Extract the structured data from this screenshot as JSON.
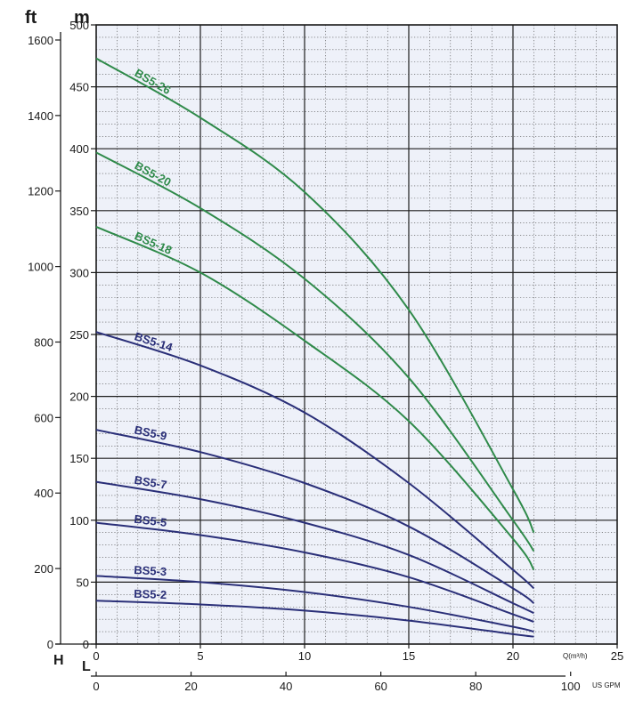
{
  "chart_data": {
    "type": "line",
    "title": "",
    "unit_labels": {
      "ft": "ft",
      "m": "m"
    },
    "axis_letters": {
      "head": "H",
      "flow": "L"
    },
    "x_axis": {
      "label": "Q(m³/h)",
      "ticks": [
        "0",
        "5",
        "10",
        "15",
        "20",
        "25"
      ],
      "range": [
        0,
        25
      ]
    },
    "x_axis_gpm": {
      "label": "US GPM",
      "ticks": [
        "0",
        "20",
        "40",
        "60",
        "80",
        "100"
      ],
      "range": [
        0,
        110
      ]
    },
    "y_axis_m": {
      "ticks": [
        "0",
        "50",
        "100",
        "150",
        "200",
        "250",
        "300",
        "350",
        "400",
        "450",
        "500"
      ],
      "range": [
        0,
        500
      ]
    },
    "y_axis_ft": {
      "ticks": [
        "0",
        "200",
        "400",
        "600",
        "800",
        "1000",
        "1200",
        "1400",
        "1600"
      ],
      "range": [
        0,
        1640
      ]
    },
    "series": [
      {
        "name": "BS5-26",
        "color": "#2f8a4a",
        "x": [
          0,
          5,
          10,
          15,
          20,
          21
        ],
        "y": [
          473,
          425,
          365,
          270,
          125,
          90
        ]
      },
      {
        "name": "BS5-20",
        "color": "#2f8a4a",
        "x": [
          0,
          5,
          10,
          15,
          20,
          21
        ],
        "y": [
          397,
          352,
          295,
          215,
          100,
          75
        ]
      },
      {
        "name": "BS5-18",
        "color": "#2f8a4a",
        "x": [
          0,
          5,
          10,
          15,
          20,
          21
        ],
        "y": [
          337,
          300,
          245,
          180,
          85,
          60
        ]
      },
      {
        "name": "BS5-14",
        "color": "#2a2f78",
        "x": [
          0,
          5,
          10,
          15,
          20,
          21
        ],
        "y": [
          252,
          225,
          187,
          130,
          60,
          45
        ]
      },
      {
        "name": "BS5-9",
        "color": "#2a2f78",
        "x": [
          0,
          5,
          10,
          15,
          20,
          21
        ],
        "y": [
          173,
          155,
          130,
          95,
          45,
          33
        ]
      },
      {
        "name": "BS5-7",
        "color": "#2a2f78",
        "x": [
          0,
          5,
          10,
          15,
          20,
          21
        ],
        "y": [
          131,
          117,
          98,
          72,
          33,
          25
        ]
      },
      {
        "name": "BS5-5",
        "color": "#2a2f78",
        "x": [
          0,
          5,
          10,
          15,
          20,
          21
        ],
        "y": [
          98,
          88,
          74,
          54,
          24,
          18
        ]
      },
      {
        "name": "BS5-3",
        "color": "#2a2f78",
        "x": [
          0,
          5,
          10,
          15,
          20,
          21
        ],
        "y": [
          55,
          50,
          42,
          30,
          14,
          10
        ]
      },
      {
        "name": "BS5-2",
        "color": "#2a2f78",
        "x": [
          0,
          5,
          10,
          15,
          20,
          21
        ],
        "y": [
          35,
          32,
          27,
          19,
          8,
          6
        ]
      }
    ]
  }
}
